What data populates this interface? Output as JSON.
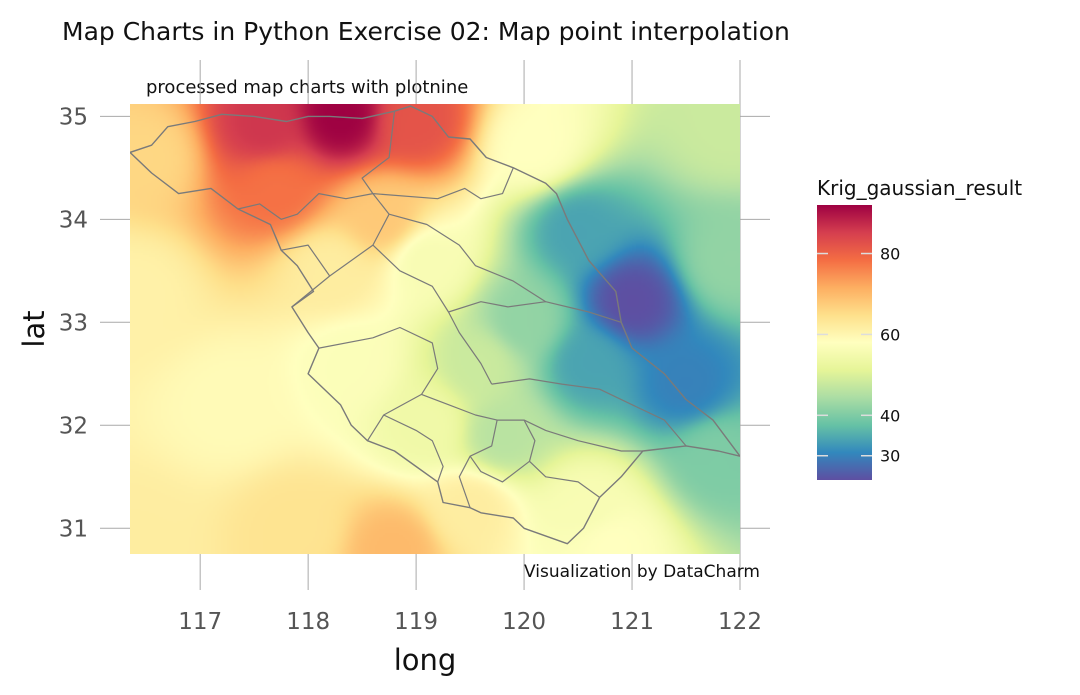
{
  "chart_data": {
    "type": "heatmap",
    "title": "Map Charts in Python Exercise 02: Map point interpolation",
    "subtitle": "processed map charts with plotnine",
    "caption": "Visualization by DataCharm",
    "xlabel": "long",
    "ylabel": "lat",
    "xlim": [
      116.35,
      122.0
    ],
    "ylim": [
      30.75,
      35.12
    ],
    "x_ticks": [
      117,
      118,
      119,
      120,
      121,
      122
    ],
    "y_ticks": [
      31,
      32,
      33,
      34,
      35
    ],
    "grid": true,
    "legend": {
      "title": "Krig_gaussian_result",
      "placement": "right",
      "min": 24,
      "max": 92,
      "ticks": [
        30,
        40,
        60,
        80
      ]
    },
    "colors": [
      "#5e4fa2",
      "#3288bd",
      "#66c2a5",
      "#abdda4",
      "#e6f598",
      "#ffffbf",
      "#fee08b",
      "#fdae61",
      "#f46d43",
      "#d53e4f",
      "#9e0142"
    ],
    "control_points": [
      {
        "x": 118.3,
        "y": 35.0,
        "value": 92
      },
      {
        "x": 117.6,
        "y": 34.9,
        "value": 86
      },
      {
        "x": 119.0,
        "y": 34.95,
        "value": 82
      },
      {
        "x": 117.7,
        "y": 34.3,
        "value": 78
      },
      {
        "x": 116.5,
        "y": 34.6,
        "value": 66
      },
      {
        "x": 118.7,
        "y": 34.0,
        "value": 68
      },
      {
        "x": 119.1,
        "y": 33.6,
        "value": 56
      },
      {
        "x": 120.1,
        "y": 34.7,
        "value": 58
      },
      {
        "x": 121.9,
        "y": 34.9,
        "value": 48
      },
      {
        "x": 121.0,
        "y": 33.2,
        "value": 24
      },
      {
        "x": 120.5,
        "y": 33.9,
        "value": 34
      },
      {
        "x": 121.5,
        "y": 32.4,
        "value": 30
      },
      {
        "x": 120.6,
        "y": 32.6,
        "value": 34
      },
      {
        "x": 120.0,
        "y": 33.0,
        "value": 42
      },
      {
        "x": 119.8,
        "y": 31.9,
        "value": 46
      },
      {
        "x": 121.8,
        "y": 31.7,
        "value": 40
      },
      {
        "x": 120.6,
        "y": 31.2,
        "value": 56
      },
      {
        "x": 120.8,
        "y": 30.85,
        "value": 58
      },
      {
        "x": 119.5,
        "y": 31.2,
        "value": 62
      },
      {
        "x": 118.8,
        "y": 30.8,
        "value": 70
      },
      {
        "x": 117.9,
        "y": 31.0,
        "value": 64
      },
      {
        "x": 116.4,
        "y": 30.85,
        "value": 62
      },
      {
        "x": 117.3,
        "y": 32.2,
        "value": 59
      },
      {
        "x": 116.4,
        "y": 33.3,
        "value": 61
      },
      {
        "x": 118.4,
        "y": 32.6,
        "value": 57
      },
      {
        "x": 119.1,
        "y": 32.0,
        "value": 54
      },
      {
        "x": 118.2,
        "y": 33.5,
        "value": 62
      },
      {
        "x": 119.6,
        "y": 32.6,
        "value": 48
      },
      {
        "x": 121.9,
        "y": 33.6,
        "value": 42
      }
    ],
    "boundaries": {
      "outline": [
        [
          116.35,
          34.65
        ],
        [
          116.55,
          34.72
        ],
        [
          116.7,
          34.9
        ],
        [
          116.95,
          34.95
        ],
        [
          117.2,
          35.02
        ],
        [
          117.5,
          35.0
        ],
        [
          117.8,
          34.95
        ],
        [
          118.0,
          35.0
        ],
        [
          118.2,
          35.0
        ],
        [
          118.5,
          34.98
        ],
        [
          118.8,
          35.05
        ],
        [
          118.95,
          35.1
        ],
        [
          119.15,
          35.0
        ],
        [
          119.3,
          34.8
        ],
        [
          119.5,
          34.78
        ],
        [
          119.65,
          34.6
        ],
        [
          119.9,
          34.5
        ],
        [
          120.2,
          34.35
        ],
        [
          120.3,
          34.25
        ],
        [
          120.4,
          34.0
        ],
        [
          120.6,
          33.6
        ],
        [
          120.85,
          33.3
        ],
        [
          120.9,
          33.0
        ],
        [
          121.0,
          32.75
        ],
        [
          121.3,
          32.5
        ],
        [
          121.5,
          32.25
        ],
        [
          121.75,
          32.05
        ],
        [
          122.0,
          31.7
        ],
        [
          121.8,
          31.75
        ],
        [
          121.5,
          31.8
        ],
        [
          121.1,
          31.75
        ],
        [
          120.9,
          31.5
        ],
        [
          120.7,
          31.3
        ],
        [
          120.55,
          31.0
        ],
        [
          120.4,
          30.85
        ],
        [
          120.0,
          31.0
        ],
        [
          119.9,
          31.1
        ],
        [
          119.6,
          31.15
        ],
        [
          119.5,
          31.2
        ],
        [
          119.25,
          31.25
        ],
        [
          119.2,
          31.45
        ],
        [
          119.0,
          31.6
        ],
        [
          118.8,
          31.75
        ],
        [
          118.55,
          31.85
        ],
        [
          118.4,
          32.0
        ],
        [
          118.3,
          32.2
        ],
        [
          118.0,
          32.5
        ],
        [
          118.1,
          32.75
        ],
        [
          118.0,
          32.9
        ],
        [
          117.85,
          33.15
        ],
        [
          118.05,
          33.3
        ],
        [
          117.9,
          33.55
        ],
        [
          117.75,
          33.7
        ],
        [
          117.65,
          33.95
        ],
        [
          117.35,
          34.1
        ],
        [
          117.1,
          34.3
        ],
        [
          116.8,
          34.25
        ],
        [
          116.55,
          34.45
        ],
        [
          116.35,
          34.65
        ]
      ],
      "inner": [
        [
          [
            118.8,
            35.05
          ],
          [
            118.75,
            34.6
          ],
          [
            118.5,
            34.4
          ],
          [
            118.6,
            34.25
          ],
          [
            118.75,
            34.05
          ],
          [
            118.6,
            33.75
          ],
          [
            118.2,
            33.45
          ],
          [
            117.85,
            33.15
          ]
        ],
        [
          [
            118.6,
            34.25
          ],
          [
            119.2,
            34.2
          ],
          [
            119.45,
            34.3
          ],
          [
            119.6,
            34.2
          ],
          [
            119.8,
            34.25
          ],
          [
            119.9,
            34.5
          ]
        ],
        [
          [
            118.75,
            34.05
          ],
          [
            119.1,
            33.95
          ],
          [
            119.4,
            33.75
          ],
          [
            119.55,
            33.55
          ],
          [
            119.9,
            33.4
          ],
          [
            120.2,
            33.2
          ],
          [
            120.6,
            33.1
          ],
          [
            120.9,
            33.0
          ]
        ],
        [
          [
            117.75,
            33.7
          ],
          [
            118.0,
            33.75
          ],
          [
            118.2,
            33.45
          ]
        ],
        [
          [
            117.35,
            34.1
          ],
          [
            117.55,
            34.15
          ],
          [
            117.75,
            34.0
          ],
          [
            117.9,
            34.05
          ],
          [
            118.1,
            34.25
          ],
          [
            118.35,
            34.2
          ],
          [
            118.6,
            34.25
          ]
        ],
        [
          [
            118.6,
            33.75
          ],
          [
            118.85,
            33.5
          ],
          [
            119.15,
            33.35
          ],
          [
            119.3,
            33.1
          ],
          [
            119.4,
            32.9
          ],
          [
            119.6,
            32.6
          ],
          [
            119.7,
            32.4
          ]
        ],
        [
          [
            118.1,
            32.75
          ],
          [
            118.6,
            32.85
          ],
          [
            118.85,
            32.95
          ],
          [
            119.15,
            32.8
          ],
          [
            119.2,
            32.55
          ],
          [
            119.05,
            32.3
          ],
          [
            118.7,
            32.1
          ],
          [
            118.55,
            31.85
          ]
        ],
        [
          [
            119.3,
            33.1
          ],
          [
            119.6,
            33.2
          ],
          [
            119.85,
            33.15
          ],
          [
            120.2,
            33.2
          ]
        ],
        [
          [
            119.7,
            32.4
          ],
          [
            120.05,
            32.45
          ],
          [
            120.35,
            32.4
          ],
          [
            120.7,
            32.35
          ],
          [
            121.0,
            32.2
          ],
          [
            121.3,
            32.05
          ],
          [
            121.5,
            31.8
          ]
        ],
        [
          [
            119.05,
            32.3
          ],
          [
            119.3,
            32.2
          ],
          [
            119.55,
            32.1
          ],
          [
            119.75,
            32.05
          ],
          [
            120.0,
            32.05
          ],
          [
            120.2,
            31.95
          ],
          [
            120.5,
            31.85
          ],
          [
            120.9,
            31.75
          ],
          [
            121.1,
            31.75
          ]
        ],
        [
          [
            118.7,
            32.1
          ],
          [
            119.0,
            31.95
          ],
          [
            119.15,
            31.85
          ],
          [
            119.25,
            31.6
          ],
          [
            119.2,
            31.45
          ]
        ],
        [
          [
            119.75,
            32.05
          ],
          [
            119.7,
            31.8
          ],
          [
            119.5,
            31.7
          ],
          [
            119.4,
            31.5
          ],
          [
            119.5,
            31.2
          ]
        ],
        [
          [
            120.0,
            32.05
          ],
          [
            120.1,
            31.85
          ],
          [
            120.05,
            31.65
          ],
          [
            120.2,
            31.5
          ],
          [
            120.5,
            31.45
          ],
          [
            120.7,
            31.3
          ]
        ],
        [
          [
            120.05,
            31.65
          ],
          [
            119.8,
            31.45
          ],
          [
            119.6,
            31.55
          ],
          [
            119.5,
            31.7
          ]
        ]
      ]
    }
  }
}
